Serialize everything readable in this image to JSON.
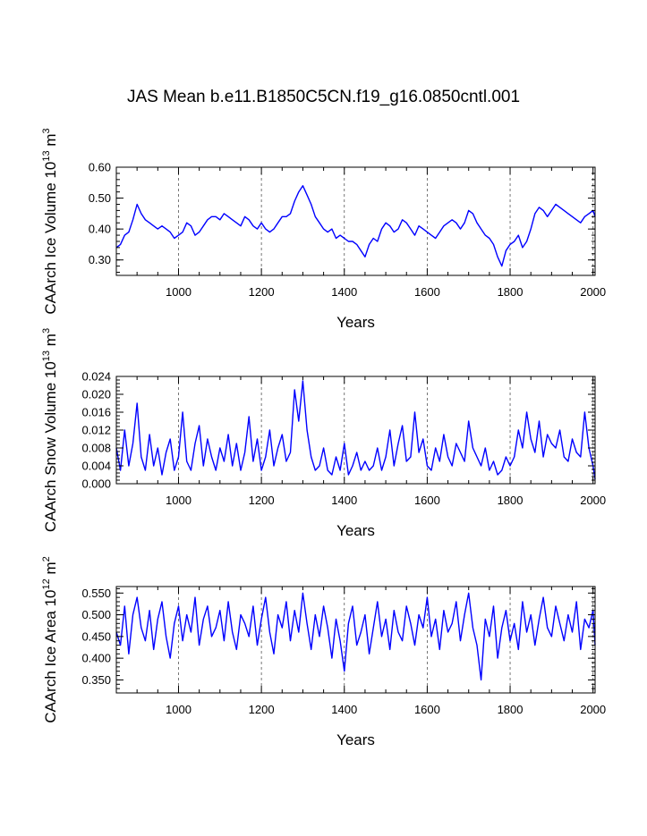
{
  "title": "JAS Mean b.e11.B1850C5CN.f19_g16.0850cntl.001",
  "colors": {
    "line": "#0000ff",
    "axis": "#000000",
    "grid": "#555555"
  },
  "chart_data": [
    {
      "type": "line",
      "name": "ice-volume",
      "ylabel": "CAArch Ice Volume 10",
      "ylabel_exp": "13",
      "ylabel_unit": " m",
      "ylabel_unit_exp": "3",
      "xlabel": "Years",
      "xlim": [
        850,
        2005
      ],
      "ylim": [
        0.25,
        0.6
      ],
      "xticks": [
        1000,
        1200,
        1400,
        1600,
        1800,
        2000
      ],
      "xtick_labels": [
        "1000",
        "1200",
        "1400",
        "1600",
        "1800",
        "2000"
      ],
      "yticks": [
        0.3,
        0.4,
        0.5,
        0.6
      ],
      "ytick_labels": [
        "0.30",
        "0.40",
        "0.50",
        "0.60"
      ],
      "grid_x": true,
      "series": [
        {
          "name": "CAArch Ice Volume",
          "color": "#0000ff",
          "x": [
            850,
            860,
            870,
            880,
            890,
            900,
            910,
            920,
            930,
            940,
            950,
            960,
            970,
            980,
            990,
            1000,
            1010,
            1020,
            1030,
            1040,
            1050,
            1060,
            1070,
            1080,
            1090,
            1100,
            1110,
            1120,
            1130,
            1140,
            1150,
            1160,
            1170,
            1180,
            1190,
            1200,
            1210,
            1220,
            1230,
            1240,
            1250,
            1260,
            1270,
            1280,
            1290,
            1300,
            1310,
            1320,
            1330,
            1340,
            1350,
            1360,
            1370,
            1380,
            1390,
            1400,
            1410,
            1420,
            1430,
            1440,
            1450,
            1460,
            1470,
            1480,
            1490,
            1500,
            1510,
            1520,
            1530,
            1540,
            1550,
            1560,
            1570,
            1580,
            1590,
            1600,
            1610,
            1620,
            1630,
            1640,
            1650,
            1660,
            1670,
            1680,
            1690,
            1700,
            1710,
            1720,
            1730,
            1740,
            1750,
            1760,
            1770,
            1780,
            1790,
            1800,
            1810,
            1820,
            1830,
            1840,
            1850,
            1860,
            1870,
            1880,
            1890,
            1900,
            1910,
            1920,
            1930,
            1940,
            1950,
            1960,
            1970,
            1980,
            1990,
            2000,
            2005
          ],
          "y": [
            0.34,
            0.35,
            0.38,
            0.39,
            0.43,
            0.48,
            0.45,
            0.43,
            0.42,
            0.41,
            0.4,
            0.41,
            0.4,
            0.39,
            0.37,
            0.38,
            0.39,
            0.42,
            0.41,
            0.38,
            0.39,
            0.41,
            0.43,
            0.44,
            0.44,
            0.43,
            0.45,
            0.44,
            0.43,
            0.42,
            0.41,
            0.44,
            0.43,
            0.41,
            0.4,
            0.42,
            0.4,
            0.39,
            0.4,
            0.42,
            0.44,
            0.44,
            0.45,
            0.49,
            0.52,
            0.54,
            0.51,
            0.48,
            0.44,
            0.42,
            0.4,
            0.39,
            0.4,
            0.37,
            0.38,
            0.37,
            0.36,
            0.36,
            0.35,
            0.33,
            0.31,
            0.35,
            0.37,
            0.36,
            0.4,
            0.42,
            0.41,
            0.39,
            0.4,
            0.43,
            0.42,
            0.4,
            0.38,
            0.41,
            0.4,
            0.39,
            0.38,
            0.37,
            0.39,
            0.41,
            0.42,
            0.43,
            0.42,
            0.4,
            0.42,
            0.46,
            0.45,
            0.42,
            0.4,
            0.38,
            0.37,
            0.35,
            0.31,
            0.28,
            0.33,
            0.35,
            0.36,
            0.38,
            0.34,
            0.36,
            0.4,
            0.45,
            0.47,
            0.46,
            0.44,
            0.46,
            0.48,
            0.47,
            0.46,
            0.45,
            0.44,
            0.43,
            0.42,
            0.44,
            0.45,
            0.46,
            0.44
          ]
        }
      ]
    },
    {
      "type": "line",
      "name": "snow-volume",
      "ylabel": "CAArch Snow Volume 10",
      "ylabel_exp": "13",
      "ylabel_unit": " m",
      "ylabel_unit_exp": "3",
      "xlabel": "Years",
      "xlim": [
        850,
        2005
      ],
      "ylim": [
        0,
        0.024
      ],
      "xticks": [
        1000,
        1200,
        1400,
        1600,
        1800,
        2000
      ],
      "xtick_labels": [
        "1000",
        "1200",
        "1400",
        "1600",
        "1800",
        "2000"
      ],
      "yticks": [
        0,
        0.004,
        0.008,
        0.012,
        0.016,
        0.02,
        0.024
      ],
      "ytick_labels": [
        "0.000",
        "0.004",
        "0.008",
        "0.012",
        "0.016",
        "0.020",
        "0.024"
      ],
      "grid_x": true,
      "series": [
        {
          "name": "CAArch Snow Volume",
          "color": "#0000ff",
          "x": [
            850,
            860,
            870,
            880,
            890,
            900,
            910,
            920,
            930,
            940,
            950,
            960,
            970,
            980,
            990,
            1000,
            1010,
            1020,
            1030,
            1040,
            1050,
            1060,
            1070,
            1080,
            1090,
            1100,
            1110,
            1120,
            1130,
            1140,
            1150,
            1160,
            1170,
            1180,
            1190,
            1200,
            1210,
            1220,
            1230,
            1240,
            1250,
            1260,
            1270,
            1280,
            1290,
            1300,
            1310,
            1320,
            1330,
            1340,
            1350,
            1360,
            1370,
            1380,
            1390,
            1400,
            1410,
            1420,
            1430,
            1440,
            1450,
            1460,
            1470,
            1480,
            1490,
            1500,
            1510,
            1520,
            1530,
            1540,
            1550,
            1560,
            1570,
            1580,
            1590,
            1600,
            1610,
            1620,
            1630,
            1640,
            1650,
            1660,
            1670,
            1680,
            1690,
            1700,
            1710,
            1720,
            1730,
            1740,
            1750,
            1760,
            1770,
            1780,
            1790,
            1800,
            1810,
            1820,
            1830,
            1840,
            1850,
            1860,
            1870,
            1880,
            1890,
            1900,
            1910,
            1920,
            1930,
            1940,
            1950,
            1960,
            1970,
            1980,
            1990,
            2000,
            2005
          ],
          "y": [
            0.008,
            0.003,
            0.012,
            0.004,
            0.009,
            0.018,
            0.006,
            0.003,
            0.011,
            0.004,
            0.008,
            0.002,
            0.007,
            0.01,
            0.003,
            0.006,
            0.016,
            0.005,
            0.003,
            0.009,
            0.013,
            0.004,
            0.01,
            0.006,
            0.003,
            0.008,
            0.005,
            0.011,
            0.004,
            0.009,
            0.003,
            0.007,
            0.015,
            0.005,
            0.01,
            0.003,
            0.006,
            0.012,
            0.004,
            0.008,
            0.011,
            0.005,
            0.007,
            0.021,
            0.014,
            0.023,
            0.012,
            0.006,
            0.003,
            0.004,
            0.008,
            0.003,
            0.002,
            0.006,
            0.003,
            0.009,
            0.002,
            0.004,
            0.007,
            0.003,
            0.005,
            0.003,
            0.004,
            0.008,
            0.003,
            0.006,
            0.012,
            0.004,
            0.009,
            0.013,
            0.005,
            0.006,
            0.016,
            0.007,
            0.01,
            0.004,
            0.003,
            0.008,
            0.005,
            0.011,
            0.006,
            0.004,
            0.009,
            0.007,
            0.005,
            0.014,
            0.008,
            0.006,
            0.004,
            0.008,
            0.003,
            0.005,
            0.002,
            0.003,
            0.006,
            0.004,
            0.006,
            0.012,
            0.008,
            0.016,
            0.01,
            0.007,
            0.014,
            0.006,
            0.011,
            0.009,
            0.008,
            0.012,
            0.006,
            0.005,
            0.01,
            0.007,
            0.006,
            0.016,
            0.008,
            0.004,
            0.001
          ]
        }
      ]
    },
    {
      "type": "line",
      "name": "ice-area",
      "ylabel": "CAArch Ice Area 10",
      "ylabel_exp": "12",
      "ylabel_unit": " m",
      "ylabel_unit_exp": "2",
      "xlabel": "Years",
      "xlim": [
        850,
        2005
      ],
      "ylim": [
        0.32,
        0.565
      ],
      "xticks": [
        1000,
        1200,
        1400,
        1600,
        1800,
        2000
      ],
      "xtick_labels": [
        "1000",
        "1200",
        "1400",
        "1600",
        "1800",
        "2000"
      ],
      "yticks": [
        0.35,
        0.4,
        0.45,
        0.5,
        0.55
      ],
      "ytick_labels": [
        "0.350",
        "0.400",
        "0.450",
        "0.500",
        "0.550"
      ],
      "grid_x": true,
      "series": [
        {
          "name": "CAArch Ice Area",
          "color": "#0000ff",
          "x": [
            850,
            860,
            870,
            880,
            890,
            900,
            910,
            920,
            930,
            940,
            950,
            960,
            970,
            980,
            990,
            1000,
            1010,
            1020,
            1030,
            1040,
            1050,
            1060,
            1070,
            1080,
            1090,
            1100,
            1110,
            1120,
            1130,
            1140,
            1150,
            1160,
            1170,
            1180,
            1190,
            1200,
            1210,
            1220,
            1230,
            1240,
            1250,
            1260,
            1270,
            1280,
            1290,
            1300,
            1310,
            1320,
            1330,
            1340,
            1350,
            1360,
            1370,
            1380,
            1390,
            1400,
            1410,
            1420,
            1430,
            1440,
            1450,
            1460,
            1470,
            1480,
            1490,
            1500,
            1510,
            1520,
            1530,
            1540,
            1550,
            1560,
            1570,
            1580,
            1590,
            1600,
            1610,
            1620,
            1630,
            1640,
            1650,
            1660,
            1670,
            1680,
            1690,
            1700,
            1710,
            1720,
            1730,
            1740,
            1750,
            1760,
            1770,
            1780,
            1790,
            1800,
            1810,
            1820,
            1830,
            1840,
            1850,
            1860,
            1870,
            1880,
            1890,
            1900,
            1910,
            1920,
            1930,
            1940,
            1950,
            1960,
            1970,
            1980,
            1990,
            2000,
            2005
          ],
          "y": [
            0.46,
            0.43,
            0.52,
            0.41,
            0.5,
            0.54,
            0.47,
            0.44,
            0.51,
            0.42,
            0.49,
            0.53,
            0.45,
            0.4,
            0.48,
            0.52,
            0.44,
            0.5,
            0.46,
            0.54,
            0.43,
            0.49,
            0.52,
            0.45,
            0.47,
            0.51,
            0.44,
            0.53,
            0.46,
            0.42,
            0.5,
            0.48,
            0.45,
            0.52,
            0.43,
            0.49,
            0.54,
            0.46,
            0.41,
            0.5,
            0.47,
            0.53,
            0.44,
            0.51,
            0.46,
            0.55,
            0.48,
            0.42,
            0.5,
            0.45,
            0.52,
            0.47,
            0.4,
            0.49,
            0.44,
            0.37,
            0.48,
            0.52,
            0.43,
            0.46,
            0.5,
            0.41,
            0.47,
            0.53,
            0.45,
            0.49,
            0.42,
            0.51,
            0.46,
            0.44,
            0.52,
            0.48,
            0.43,
            0.5,
            0.47,
            0.54,
            0.45,
            0.49,
            0.42,
            0.51,
            0.46,
            0.48,
            0.53,
            0.44,
            0.5,
            0.55,
            0.47,
            0.43,
            0.35,
            0.49,
            0.45,
            0.52,
            0.4,
            0.47,
            0.51,
            0.44,
            0.48,
            0.42,
            0.53,
            0.46,
            0.5,
            0.43,
            0.49,
            0.54,
            0.47,
            0.45,
            0.52,
            0.48,
            0.44,
            0.5,
            0.46,
            0.53,
            0.42,
            0.49,
            0.47,
            0.51,
            0.43
          ]
        }
      ]
    }
  ]
}
